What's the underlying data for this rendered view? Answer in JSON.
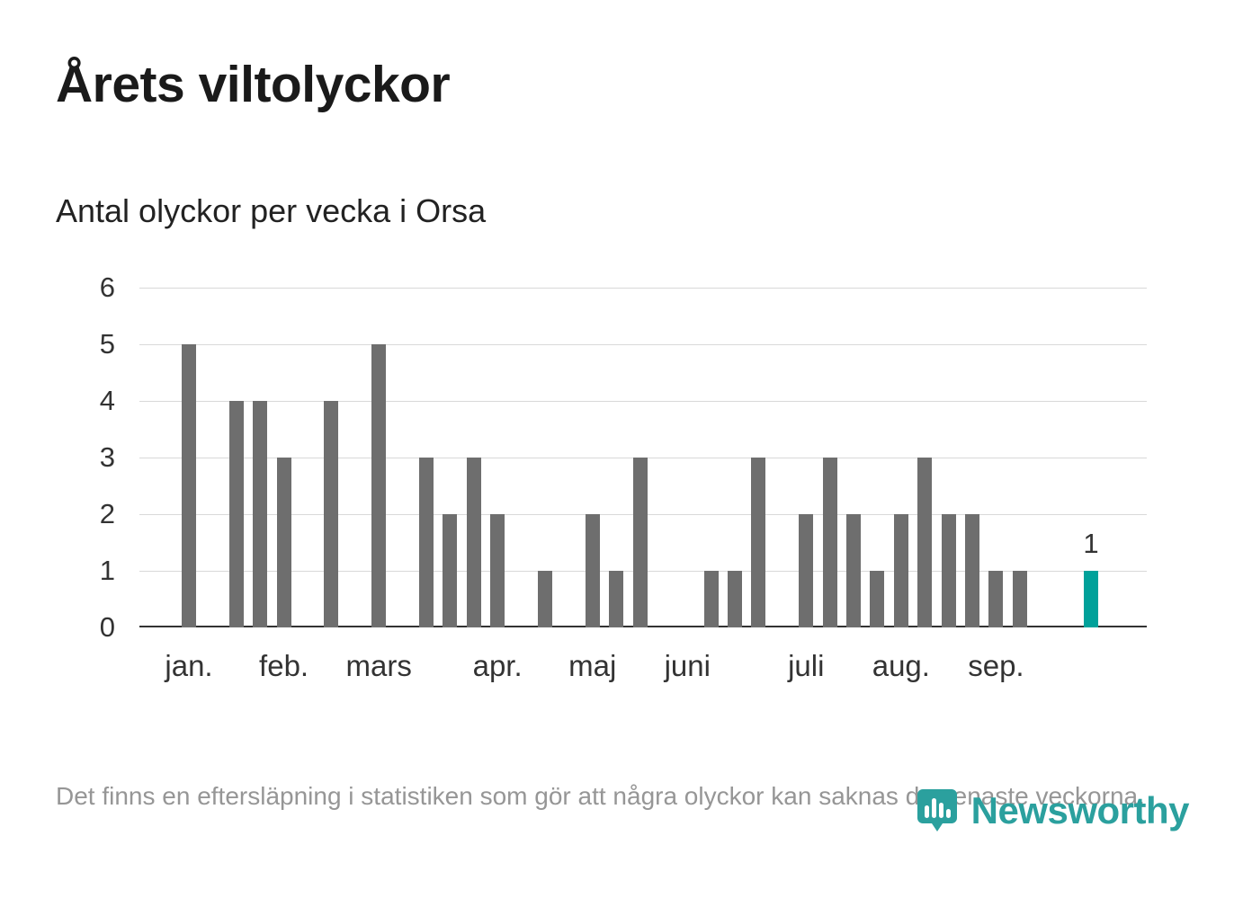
{
  "chart_data": {
    "type": "bar",
    "title": "Årets viltolyckor",
    "subtitle": "Antal olyckor per vecka i Orsa",
    "x_unit": "vecka",
    "ylim": [
      0,
      6
    ],
    "yticks": [
      0,
      1,
      2,
      3,
      4,
      5,
      6
    ],
    "grid": true,
    "legend": "none",
    "values": [
      5,
      0,
      4,
      4,
      3,
      0,
      4,
      0,
      5,
      0,
      3,
      2,
      3,
      2,
      0,
      1,
      0,
      2,
      1,
      3,
      0,
      0,
      1,
      1,
      3,
      0,
      2,
      3,
      2,
      1,
      2,
      3,
      2,
      2,
      1,
      1,
      0,
      0,
      1
    ],
    "month_ticks": [
      {
        "label": "jan.",
        "week_index": 0
      },
      {
        "label": "feb.",
        "week_index": 4
      },
      {
        "label": "mars",
        "week_index": 8
      },
      {
        "label": "apr.",
        "week_index": 13
      },
      {
        "label": "maj",
        "week_index": 17
      },
      {
        "label": "juni",
        "week_index": 21
      },
      {
        "label": "juli",
        "week_index": 26
      },
      {
        "label": "aug.",
        "week_index": 30
      },
      {
        "label": "sep.",
        "week_index": 34
      }
    ],
    "bar_color": "#6e6e6e",
    "highlight_color": "#00a19a",
    "last_value_label": "1"
  },
  "footer": {
    "note": "Det finns en eftersläpning i statistiken som gör att några olyckor kan saknas de senaste veckorna."
  },
  "logo": {
    "text": "Newsworthy",
    "color": "#2ba09e"
  }
}
